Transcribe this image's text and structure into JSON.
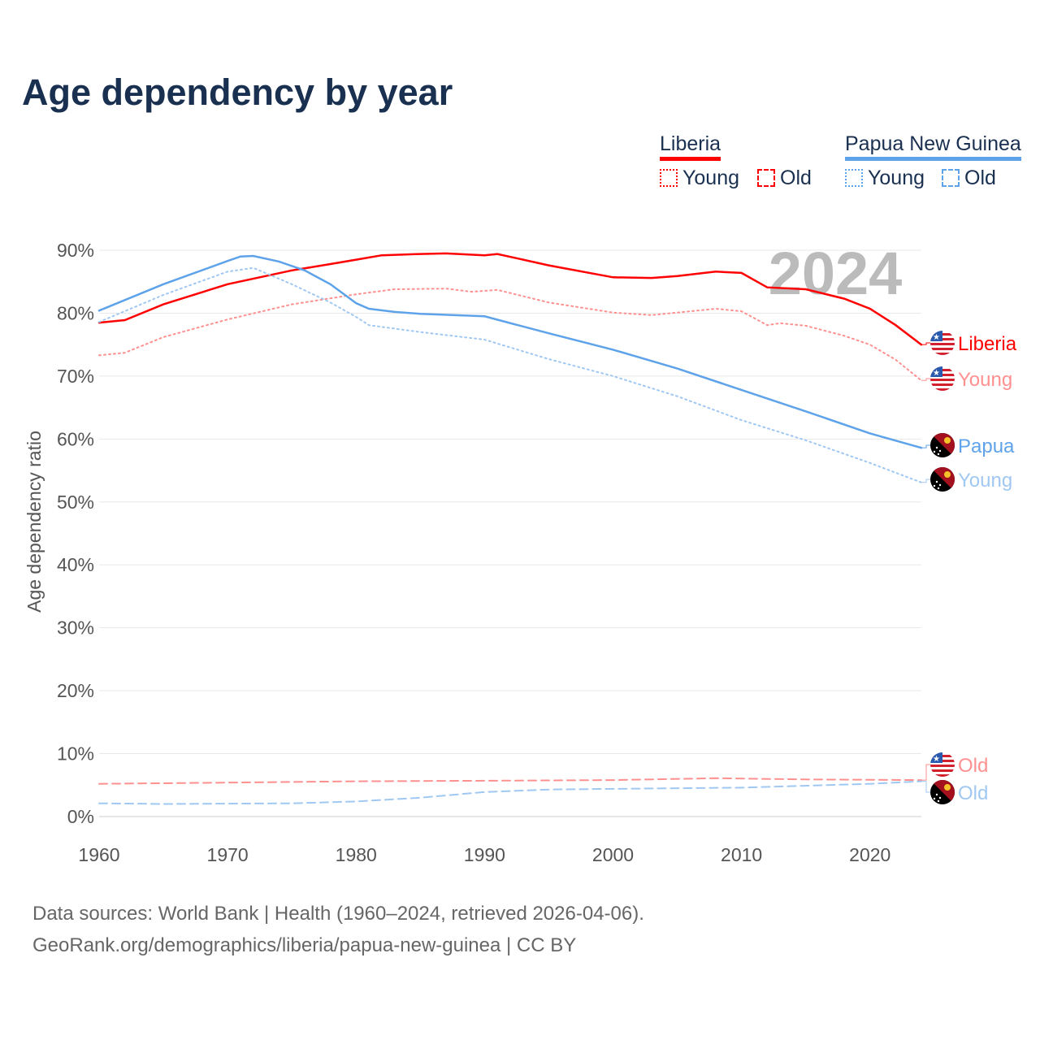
{
  "title": "Age dependency by year",
  "legend": {
    "groups": [
      {
        "name": "Liberia",
        "color": "#ff0000",
        "young_color": "#ff9090",
        "items": [
          "Young",
          "Old"
        ]
      },
      {
        "name": "Papua New Guinea",
        "color": "#5ea3ea",
        "young_color": "#a0c8f2",
        "items": [
          "Young",
          "Old"
        ]
      }
    ]
  },
  "footer": {
    "line1": "Data sources: World Bank | Health (1960–2024, retrieved 2026-04-06).",
    "line2": "GeoRank.org/demographics/liberia/papua-new-guinea | CC BY"
  },
  "chart_data": {
    "type": "line",
    "title": "Age dependency by year",
    "ylabel": "Age dependency ratio",
    "xlim": [
      1960,
      2024
    ],
    "ylim": [
      0,
      90
    ],
    "x_ticks": [
      "1960",
      "1970",
      "1980",
      "1990",
      "2000",
      "2010",
      "2020"
    ],
    "y_ticks": [
      "0%",
      "10%",
      "20%",
      "30%",
      "40%",
      "50%",
      "60%",
      "70%",
      "80%",
      "90%"
    ],
    "year_annotation": "2024",
    "series": [
      {
        "name": "Liberia",
        "label": "Liberia",
        "style": "solid",
        "color": "#ff0000",
        "points": [
          [
            1960,
            78.5
          ],
          [
            1962,
            78.9
          ],
          [
            1965,
            81.4
          ],
          [
            1970,
            84.6
          ],
          [
            1975,
            86.8
          ],
          [
            1978,
            87.8
          ],
          [
            1980,
            88.5
          ],
          [
            1982,
            89.2
          ],
          [
            1985,
            89.4
          ],
          [
            1987,
            89.5
          ],
          [
            1990,
            89.2
          ],
          [
            1991,
            89.4
          ],
          [
            1995,
            87.6
          ],
          [
            2000,
            85.7
          ],
          [
            2003,
            85.6
          ],
          [
            2005,
            85.9
          ],
          [
            2008,
            86.6
          ],
          [
            2010,
            86.4
          ],
          [
            2012,
            84.1
          ],
          [
            2015,
            83.8
          ],
          [
            2018,
            82.3
          ],
          [
            2020,
            80.7
          ],
          [
            2022,
            78.1
          ],
          [
            2024,
            75.0
          ]
        ]
      },
      {
        "name": "Liberia Young",
        "label": "Young",
        "style": "dotted",
        "color": "#ff9090",
        "points": [
          [
            1960,
            73.3
          ],
          [
            1962,
            73.7
          ],
          [
            1965,
            76.2
          ],
          [
            1970,
            79.0
          ],
          [
            1975,
            81.4
          ],
          [
            1980,
            83.0
          ],
          [
            1983,
            83.8
          ],
          [
            1987,
            83.9
          ],
          [
            1989,
            83.4
          ],
          [
            1991,
            83.7
          ],
          [
            1995,
            81.7
          ],
          [
            2000,
            80.1
          ],
          [
            2003,
            79.7
          ],
          [
            2005,
            80.1
          ],
          [
            2008,
            80.7
          ],
          [
            2010,
            80.3
          ],
          [
            2012,
            78.1
          ],
          [
            2013,
            78.4
          ],
          [
            2015,
            78.0
          ],
          [
            2018,
            76.4
          ],
          [
            2020,
            75.0
          ],
          [
            2022,
            72.6
          ],
          [
            2024,
            69.3
          ]
        ]
      },
      {
        "name": "Liberia Old",
        "label": "Old",
        "style": "dashed",
        "color": "#ff9090",
        "points": [
          [
            1960,
            5.2
          ],
          [
            1970,
            5.4
          ],
          [
            1980,
            5.6
          ],
          [
            1990,
            5.7
          ],
          [
            2000,
            5.8
          ],
          [
            2008,
            6.1
          ],
          [
            2015,
            5.9
          ],
          [
            2024,
            5.8
          ]
        ]
      },
      {
        "name": "Papua New Guinea",
        "label": "Papua",
        "style": "solid",
        "color": "#5ea3ea",
        "points": [
          [
            1960,
            80.4
          ],
          [
            1965,
            84.6
          ],
          [
            1970,
            88.3
          ],
          [
            1971,
            89.0
          ],
          [
            1972,
            89.1
          ],
          [
            1974,
            88.2
          ],
          [
            1976,
            86.8
          ],
          [
            1978,
            84.6
          ],
          [
            1980,
            81.6
          ],
          [
            1981,
            80.7
          ],
          [
            1983,
            80.2
          ],
          [
            1985,
            79.9
          ],
          [
            1990,
            79.5
          ],
          [
            1995,
            76.8
          ],
          [
            2000,
            74.2
          ],
          [
            2005,
            71.2
          ],
          [
            2010,
            67.8
          ],
          [
            2015,
            64.4
          ],
          [
            2020,
            60.9
          ],
          [
            2024,
            58.6
          ]
        ]
      },
      {
        "name": "Papua New Guinea Young",
        "label": "Young",
        "style": "dotted",
        "color": "#a0c8f2",
        "points": [
          [
            1960,
            78.6
          ],
          [
            1965,
            82.9
          ],
          [
            1970,
            86.6
          ],
          [
            1972,
            87.2
          ],
          [
            1975,
            84.6
          ],
          [
            1978,
            81.7
          ],
          [
            1980,
            79.4
          ],
          [
            1981,
            78.1
          ],
          [
            1985,
            77.0
          ],
          [
            1990,
            75.8
          ],
          [
            1995,
            72.7
          ],
          [
            2000,
            70.0
          ],
          [
            2005,
            66.8
          ],
          [
            2010,
            63.0
          ],
          [
            2015,
            59.8
          ],
          [
            2020,
            56.2
          ],
          [
            2024,
            53.1
          ]
        ]
      },
      {
        "name": "Papua New Guinea Old",
        "label": "Old",
        "style": "dashed",
        "color": "#a0c8f2",
        "points": [
          [
            1960,
            2.1
          ],
          [
            1965,
            2.0
          ],
          [
            1975,
            2.1
          ],
          [
            1980,
            2.4
          ],
          [
            1985,
            3.0
          ],
          [
            1990,
            3.9
          ],
          [
            1995,
            4.3
          ],
          [
            2000,
            4.4
          ],
          [
            2010,
            4.6
          ],
          [
            2020,
            5.2
          ],
          [
            2024,
            5.6
          ]
        ]
      }
    ]
  }
}
